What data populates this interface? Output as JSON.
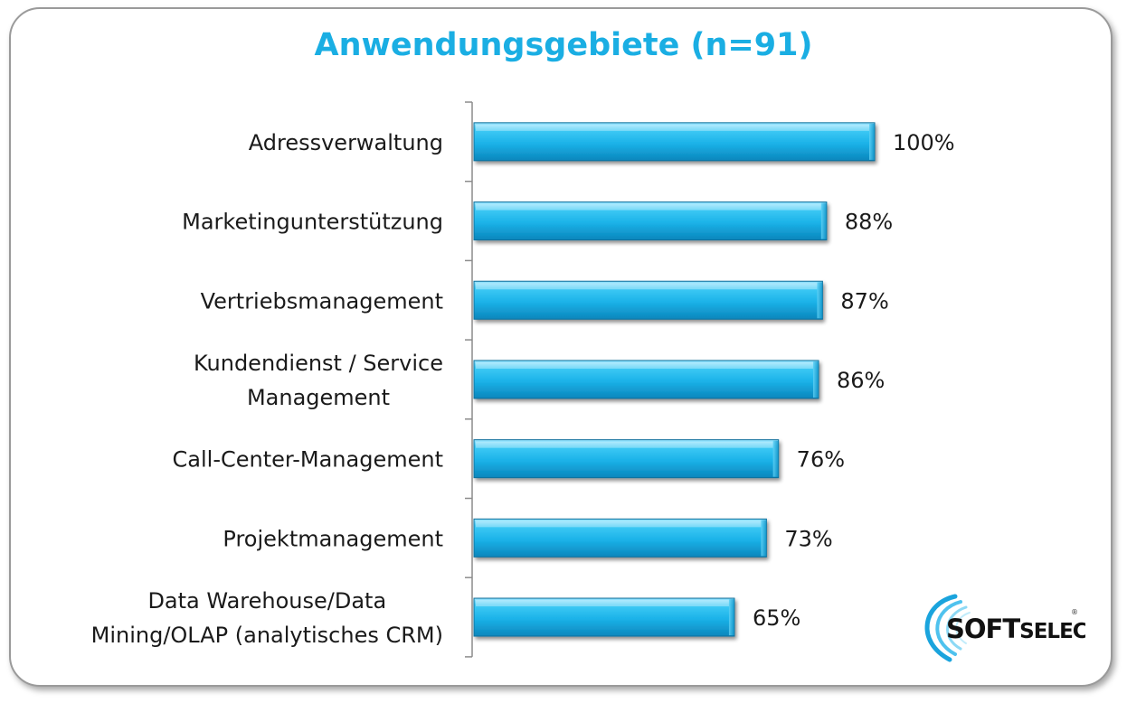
{
  "chart_data": {
    "type": "bar",
    "orientation": "horizontal",
    "title": "Anwendungsgebiete (n=91)",
    "categories": [
      [
        "Adressverwaltung"
      ],
      [
        "Marketingunterstützung"
      ],
      [
        "Vertriebsmanagement"
      ],
      [
        "Kundendienst  / Service",
        "Management"
      ],
      [
        "Call-Center-Management"
      ],
      [
        "Projektmanagement"
      ],
      [
        "Data Warehouse/Data",
        "Mining/OLAP (analytisches CRM)"
      ]
    ],
    "values": [
      100,
      88,
      87,
      86,
      76,
      73,
      65
    ],
    "value_labels": [
      "100%",
      "88%",
      "87%",
      "86%",
      "76%",
      "73%",
      "65%"
    ],
    "xlim": [
      0,
      100
    ],
    "grid": false,
    "legend": "none",
    "bar_color": "#1fb6ea"
  },
  "logo": {
    "text_a": "SOFT",
    "text_b": "SELECT",
    "mark": "®"
  }
}
